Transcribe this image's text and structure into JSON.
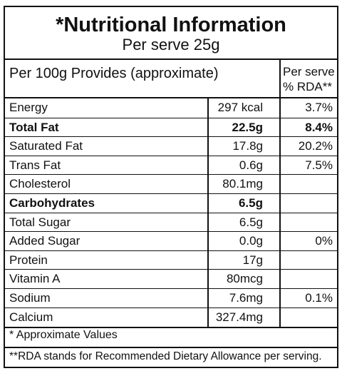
{
  "title": "*Nutritional Information",
  "subtitle": "Per serve 25g",
  "header": {
    "per100": "Per 100g Provides (approximate)",
    "per_serve": "Per serve % RDA**"
  },
  "rows": [
    {
      "name": "Energy",
      "amount": "297 kcal",
      "rda": "3.7%",
      "bold": false
    },
    {
      "name": "Total Fat",
      "amount": "22.5g",
      "rda": "8.4%",
      "bold": true
    },
    {
      "name": "Saturated Fat",
      "amount": "17.8g",
      "rda": "20.2%",
      "bold": false
    },
    {
      "name": "Trans Fat",
      "amount": "0.6g",
      "rda": "7.5%",
      "bold": false
    },
    {
      "name": "Cholesterol",
      "amount": "80.1mg",
      "rda": "",
      "bold": false
    },
    {
      "name": "Carbohydrates",
      "amount": "6.5g",
      "rda": "",
      "bold": true
    },
    {
      "name": "Total Sugar",
      "amount": "6.5g",
      "rda": "",
      "bold": false
    },
    {
      "name": "Added Sugar",
      "amount": "0.0g",
      "rda": "0%",
      "bold": false
    },
    {
      "name": "Protein",
      "amount": "17g",
      "rda": "",
      "bold": false
    },
    {
      "name": "Vitamin A",
      "amount": "80mcg",
      "rda": "",
      "bold": false
    },
    {
      "name": "Sodium",
      "amount": "7.6mg",
      "rda": "0.1%",
      "bold": false
    },
    {
      "name": "Calcium",
      "amount": "327.4mg",
      "rda": "",
      "bold": false
    }
  ],
  "footnotes": {
    "approx": "* Approximate Values",
    "rda": "**RDA stands for Recommended Dietary Allowance per serving."
  }
}
